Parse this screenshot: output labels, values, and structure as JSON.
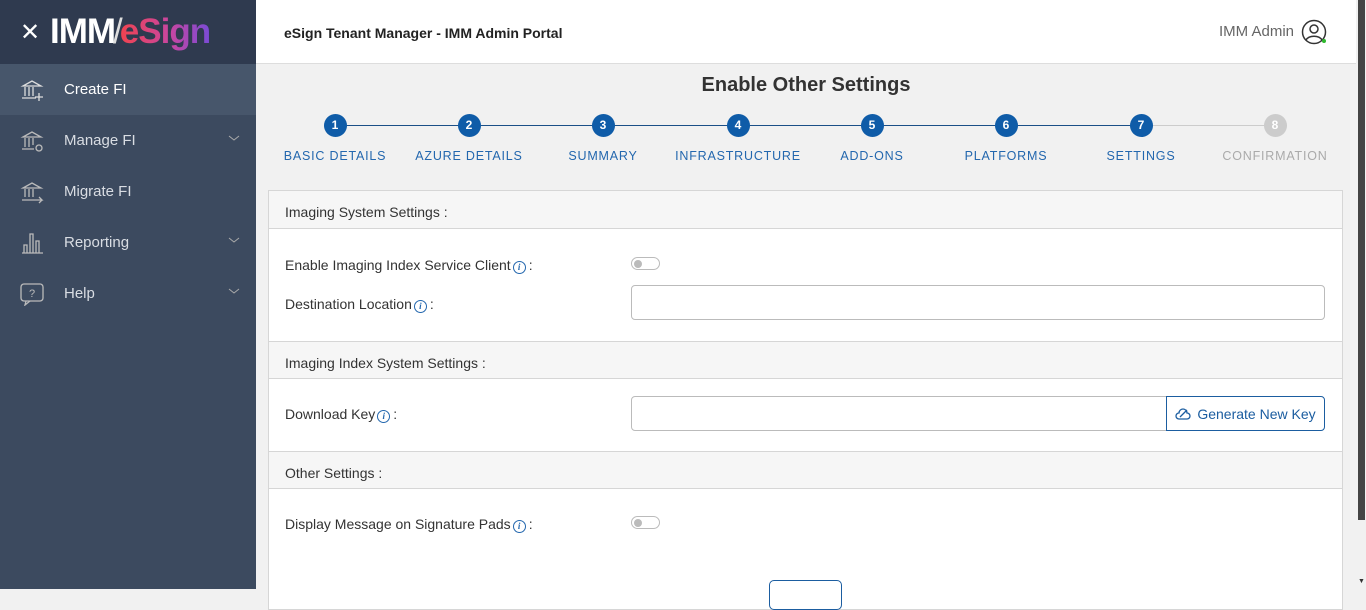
{
  "sidebar": {
    "logo_text": "IMM/eSign",
    "items": [
      {
        "label": "Create FI",
        "icon": "bank-plus-icon",
        "active": true
      },
      {
        "label": "Manage FI",
        "icon": "bank-gear-icon",
        "expandable": true
      },
      {
        "label": "Migrate FI",
        "icon": "bank-arrow-icon"
      },
      {
        "label": "Reporting",
        "icon": "bar-chart-icon",
        "expandable": true
      },
      {
        "label": "Help",
        "icon": "help-icon",
        "expandable": true
      }
    ]
  },
  "header": {
    "title": "eSign Tenant Manager - IMM Admin Portal",
    "user": "IMM Admin"
  },
  "page": {
    "title": "Enable Other Settings"
  },
  "steps": [
    {
      "n": "1",
      "label": "BASIC DETAILS"
    },
    {
      "n": "2",
      "label": "AZURE DETAILS"
    },
    {
      "n": "3",
      "label": "SUMMARY"
    },
    {
      "n": "4",
      "label": "INFRASTRUCTURE"
    },
    {
      "n": "5",
      "label": "ADD-ONS"
    },
    {
      "n": "6",
      "label": "PLATFORMS"
    },
    {
      "n": "7",
      "label": "SETTINGS"
    },
    {
      "n": "8",
      "label": "CONFIRMATION"
    }
  ],
  "current_step": 7,
  "sections": {
    "imaging": {
      "title": "Imaging System Settings :",
      "enable_label": "Enable Imaging Index Service Client",
      "enable_value": false,
      "dest_label": "Destination Location",
      "dest_value": ""
    },
    "index": {
      "title": "Imaging Index System Settings :",
      "key_label": "Download Key",
      "key_value": "",
      "generate_label": "Generate New Key"
    },
    "other": {
      "title": "Other Settings :",
      "display_label": "Display Message on Signature Pads",
      "display_value": false
    }
  },
  "colors": {
    "accent": "#0f5ca8",
    "sidebar": "#3c4a5f"
  }
}
